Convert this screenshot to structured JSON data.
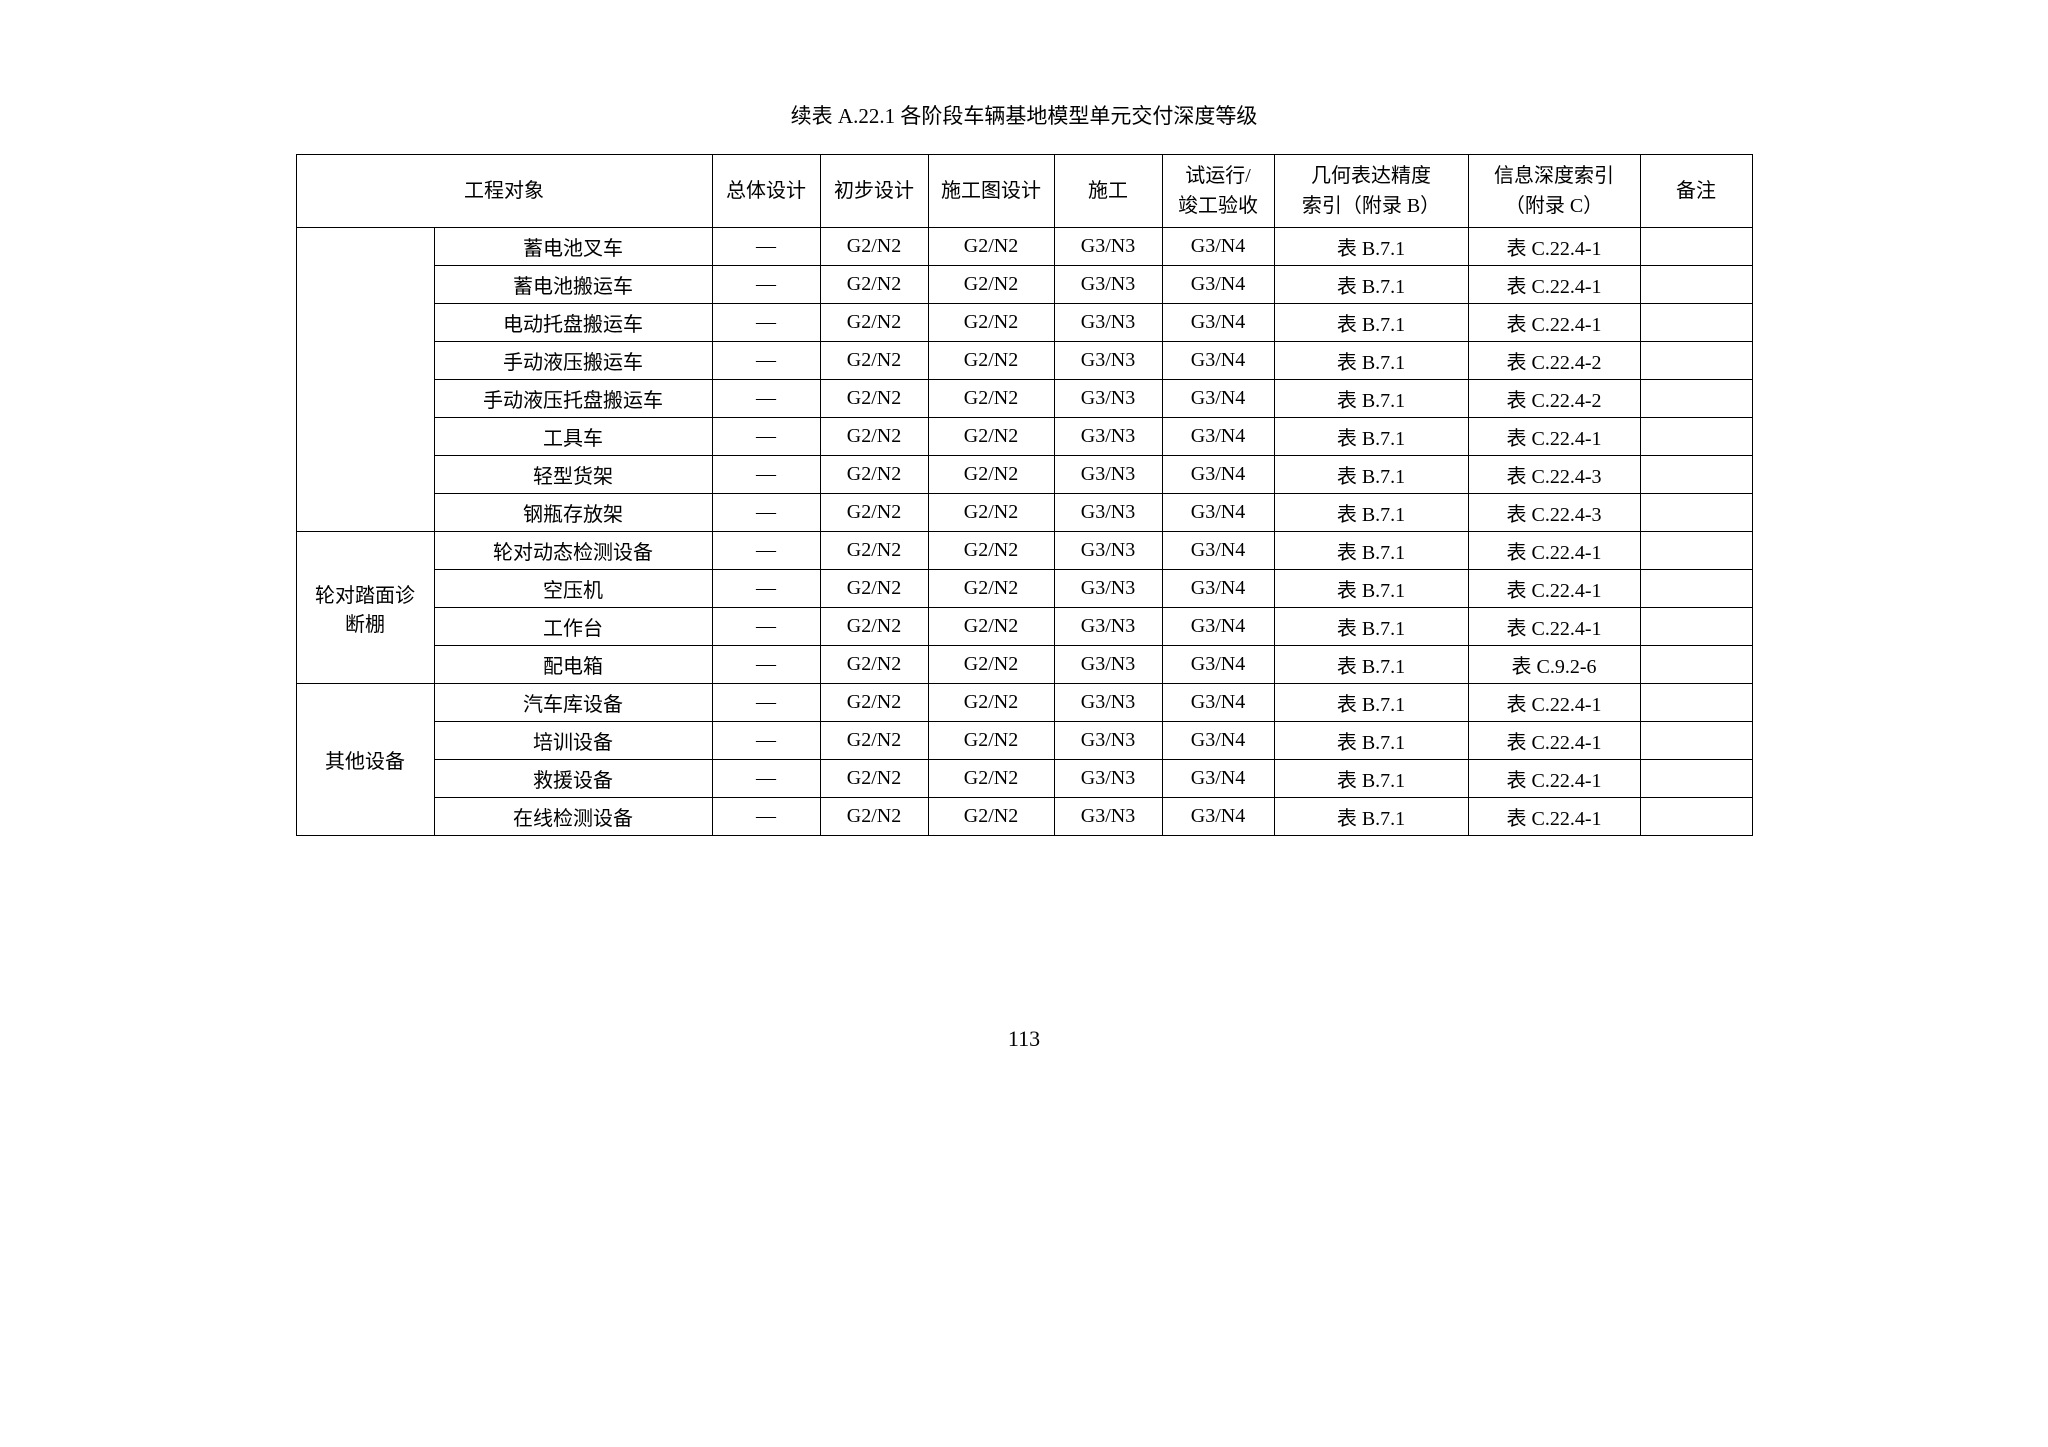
{
  "title": "续表 A.22.1   各阶段车辆基地模型单元交付深度等级",
  "page_number": "113",
  "colors": {
    "background": "#ffffff",
    "text": "#000000",
    "border": "#000000"
  },
  "table": {
    "headers": {
      "col1_merged": "工程对象",
      "col3": "总体设计",
      "col4": "初步设计",
      "col5": "施工图设计",
      "col6": "施工",
      "col7_line1": "试运行/",
      "col7_line2": "竣工验收",
      "col8_line1": "几何表达精度",
      "col8_line2": "索引（附录 B）",
      "col9_line1": "信息深度索引",
      "col9_line2": "（附录 C）",
      "col10": "备注"
    },
    "groups": [
      {
        "category": "",
        "items": [
          {
            "name": "蓄电池叉车",
            "d1": "—",
            "d2": "G2/N2",
            "d3": "G2/N2",
            "d4": "G3/N3",
            "d5": "G3/N4",
            "geom": "表 B.7.1",
            "info": "表 C.22.4-1",
            "remark": ""
          },
          {
            "name": "蓄电池搬运车",
            "d1": "—",
            "d2": "G2/N2",
            "d3": "G2/N2",
            "d4": "G3/N3",
            "d5": "G3/N4",
            "geom": "表 B.7.1",
            "info": "表 C.22.4-1",
            "remark": ""
          },
          {
            "name": "电动托盘搬运车",
            "d1": "—",
            "d2": "G2/N2",
            "d3": "G2/N2",
            "d4": "G3/N3",
            "d5": "G3/N4",
            "geom": "表 B.7.1",
            "info": "表 C.22.4-1",
            "remark": ""
          },
          {
            "name": "手动液压搬运车",
            "d1": "—",
            "d2": "G2/N2",
            "d3": "G2/N2",
            "d4": "G3/N3",
            "d5": "G3/N4",
            "geom": "表 B.7.1",
            "info": "表 C.22.4-2",
            "remark": ""
          },
          {
            "name": "手动液压托盘搬运车",
            "d1": "—",
            "d2": "G2/N2",
            "d3": "G2/N2",
            "d4": "G3/N3",
            "d5": "G3/N4",
            "geom": "表 B.7.1",
            "info": "表 C.22.4-2",
            "remark": ""
          },
          {
            "name": "工具车",
            "d1": "—",
            "d2": "G2/N2",
            "d3": "G2/N2",
            "d4": "G3/N3",
            "d5": "G3/N4",
            "geom": "表 B.7.1",
            "info": "表 C.22.4-1",
            "remark": ""
          },
          {
            "name": "轻型货架",
            "d1": "—",
            "d2": "G2/N2",
            "d3": "G2/N2",
            "d4": "G3/N3",
            "d5": "G3/N4",
            "geom": "表 B.7.1",
            "info": "表 C.22.4-3",
            "remark": ""
          },
          {
            "name": "钢瓶存放架",
            "d1": "—",
            "d2": "G2/N2",
            "d3": "G2/N2",
            "d4": "G3/N3",
            "d5": "G3/N4",
            "geom": "表 B.7.1",
            "info": "表 C.22.4-3",
            "remark": ""
          }
        ]
      },
      {
        "category": "轮对踏面诊断棚",
        "items": [
          {
            "name": "轮对动态检测设备",
            "d1": "—",
            "d2": "G2/N2",
            "d3": "G2/N2",
            "d4": "G3/N3",
            "d5": "G3/N4",
            "geom": "表 B.7.1",
            "info": "表 C.22.4-1",
            "remark": ""
          },
          {
            "name": "空压机",
            "d1": "—",
            "d2": "G2/N2",
            "d3": "G2/N2",
            "d4": "G3/N3",
            "d5": "G3/N4",
            "geom": "表 B.7.1",
            "info": "表 C.22.4-1",
            "remark": ""
          },
          {
            "name": "工作台",
            "d1": "—",
            "d2": "G2/N2",
            "d3": "G2/N2",
            "d4": "G3/N3",
            "d5": "G3/N4",
            "geom": "表 B.7.1",
            "info": "表 C.22.4-1",
            "remark": ""
          },
          {
            "name": "配电箱",
            "d1": "—",
            "d2": "G2/N2",
            "d3": "G2/N2",
            "d4": "G3/N3",
            "d5": "G3/N4",
            "geom": "表 B.7.1",
            "info": "表 C.9.2-6",
            "remark": ""
          }
        ]
      },
      {
        "category": "其他设备",
        "items": [
          {
            "name": "汽车库设备",
            "d1": "—",
            "d2": "G2/N2",
            "d3": "G2/N2",
            "d4": "G3/N3",
            "d5": "G3/N4",
            "geom": "表 B.7.1",
            "info": "表 C.22.4-1",
            "remark": ""
          },
          {
            "name": "培训设备",
            "d1": "—",
            "d2": "G2/N2",
            "d3": "G2/N2",
            "d4": "G3/N3",
            "d5": "G3/N4",
            "geom": "表 B.7.1",
            "info": "表 C.22.4-1",
            "remark": ""
          },
          {
            "name": "救援设备",
            "d1": "—",
            "d2": "G2/N2",
            "d3": "G2/N2",
            "d4": "G3/N3",
            "d5": "G3/N4",
            "geom": "表 B.7.1",
            "info": "表 C.22.4-1",
            "remark": ""
          },
          {
            "name": "在线检测设备",
            "d1": "—",
            "d2": "G2/N2",
            "d3": "G2/N2",
            "d4": "G3/N3",
            "d5": "G3/N4",
            "geom": "表 B.7.1",
            "info": "表 C.22.4-1",
            "remark": ""
          }
        ]
      }
    ]
  }
}
